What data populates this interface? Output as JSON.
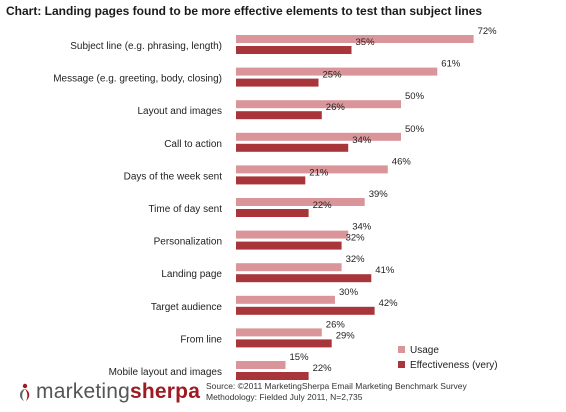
{
  "title": "Chart: Landing pages found to be more effective elements to test than subject lines",
  "chart_data": {
    "type": "bar",
    "orientation": "horizontal",
    "categories": [
      "Subject line (e.g. phrasing, length)",
      "Message (e.g. greeting, body, closing)",
      "Layout and images",
      "Call to action",
      "Days of the week sent",
      "Time of day sent",
      "Personalization",
      "Landing page",
      "Target audience",
      "From line",
      "Mobile layout and images"
    ],
    "series": [
      {
        "name": "Usage",
        "color": "#d9959a",
        "values": [
          72,
          61,
          50,
          50,
          46,
          39,
          34,
          32,
          30,
          26,
          15
        ]
      },
      {
        "name": "Effectiveness (very)",
        "color": "#a8353a",
        "values": [
          35,
          25,
          26,
          34,
          21,
          22,
          32,
          41,
          42,
          29,
          22
        ]
      }
    ],
    "value_suffix": "%",
    "xlim": [
      0,
      72
    ],
    "grid": false,
    "legend_position": "bottom-right"
  },
  "footer": {
    "logo_part1": "marketing",
    "logo_part2": "sherpa",
    "source_line1": "Source:  ©2011 MarketingSherpa Email Marketing Benchmark Survey",
    "source_line2": "Methodology: Fielded July 2011, N=2,735"
  }
}
